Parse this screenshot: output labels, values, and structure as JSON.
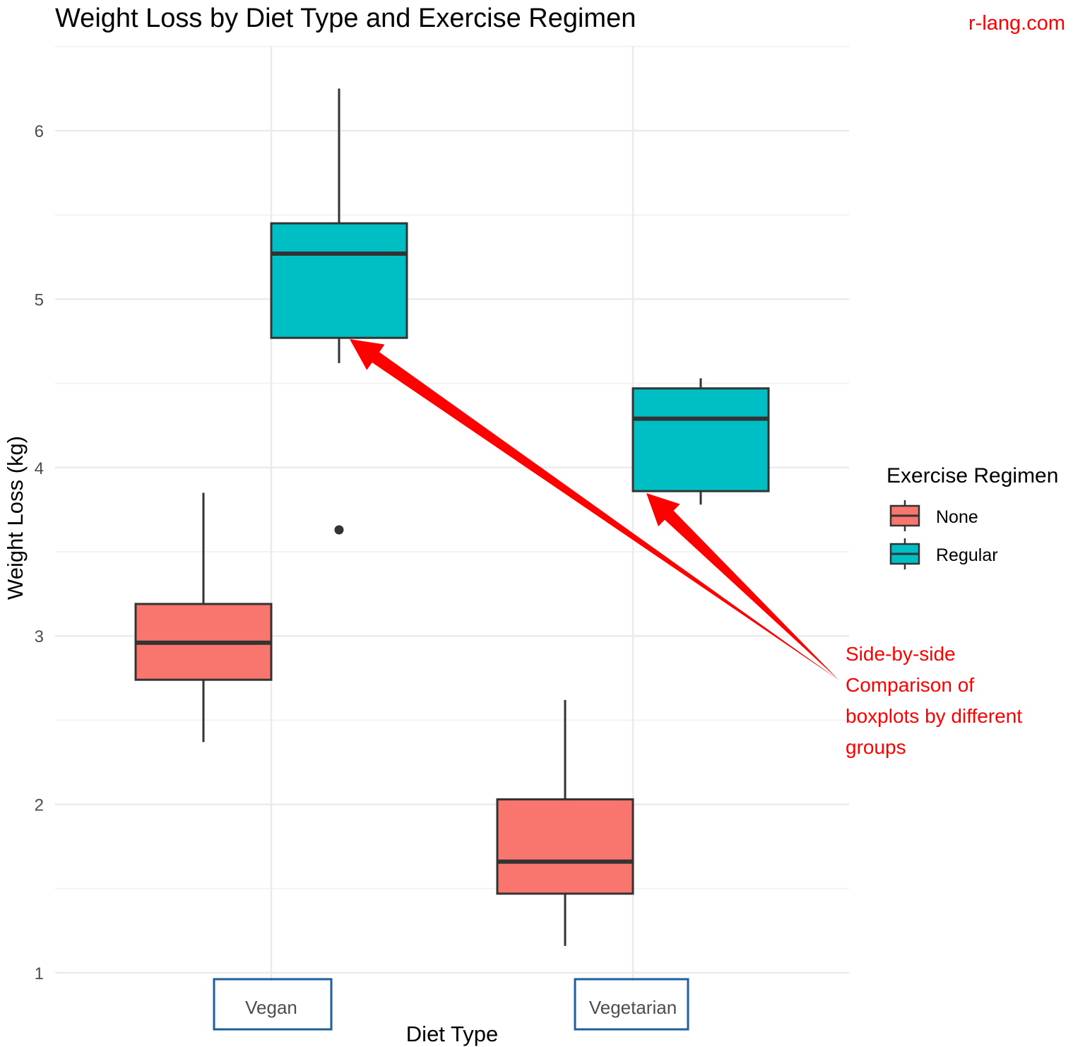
{
  "watermark": "r-lang.com",
  "chart_data": {
    "type": "boxplot",
    "title": "Weight Loss by Diet Type and Exercise Regimen",
    "xlabel": "Diet Type",
    "ylabel": "Weight Loss (kg)",
    "categories": [
      "Vegan",
      "Vegetarian"
    ],
    "y_ticks": [
      1,
      2,
      3,
      4,
      5,
      6
    ],
    "ylim": [
      0.95,
      6.5
    ],
    "grid": true,
    "legend": {
      "title": "Exercise Regimen",
      "position": "right"
    },
    "series": [
      {
        "name": "None",
        "color": "#F8766D",
        "boxes": [
          {
            "category": "Vegan",
            "whisker_low": 2.37,
            "q1": 2.74,
            "median": 2.96,
            "q3": 3.19,
            "whisker_high": 3.85,
            "outliers": []
          },
          {
            "category": "Vegetarian",
            "whisker_low": 1.16,
            "q1": 1.47,
            "median": 1.66,
            "q3": 2.03,
            "whisker_high": 2.62,
            "outliers": []
          }
        ]
      },
      {
        "name": "Regular",
        "color": "#00BFC4",
        "boxes": [
          {
            "category": "Vegan",
            "whisker_low": 4.62,
            "q1": 4.77,
            "median": 5.27,
            "q3": 5.45,
            "whisker_high": 6.25,
            "outliers": [
              3.63
            ]
          },
          {
            "category": "Vegetarian",
            "whisker_low": 3.78,
            "q1": 3.86,
            "median": 4.29,
            "q3": 4.47,
            "whisker_high": 4.53,
            "outliers": []
          }
        ]
      }
    ],
    "annotation": {
      "lines": [
        "Side-by-side",
        "Comparison of",
        "boxplots by different",
        "groups"
      ],
      "color": "#FF0000"
    },
    "highlight_color": "#1F5F9E"
  }
}
